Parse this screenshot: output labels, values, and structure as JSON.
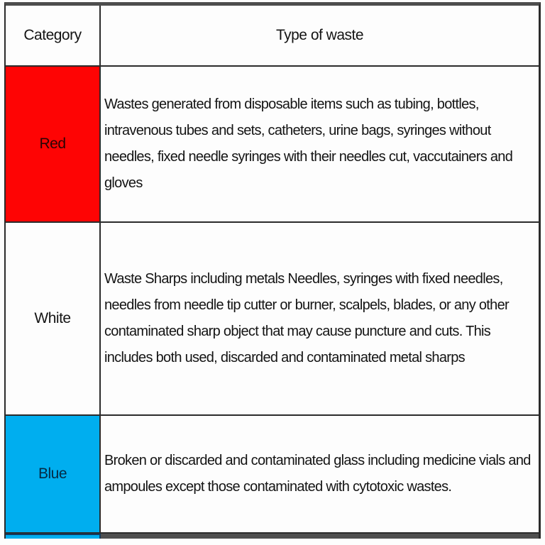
{
  "table": {
    "header": {
      "category": "Category",
      "type": "Type of waste"
    },
    "rows": [
      {
        "category": "Red",
        "bin_color": "#fe0404",
        "label_color": "#2a0404",
        "description": "Wastes generated from disposable items such as tubing, bottles, intravenous tubes and sets, catheters, urine bags, syringes without needles, fixed needle syringes with their needles cut, vaccutainers and gloves"
      },
      {
        "category": "White",
        "bin_color": "#fdfdfd",
        "label_color": "#141414",
        "description": "Waste Sharps including metals Needles, syringes with fixed needles, needles from needle tip cutter or burner, scalpels, blades, or any other contaminated sharp object that may cause puncture and cuts. This includes both used, discarded and contaminated metal sharps"
      },
      {
        "category": "Blue",
        "bin_color": "#00aeef",
        "label_color": "#042a44",
        "description": "Broken or discarded and contaminated glass including medicine vials and ampoules except those contaminated with cytotoxic wastes."
      }
    ],
    "colors": {
      "border": "#2b2b2b",
      "top_bar": "#4d4d4d",
      "bottom_bar": "#4f4f4f",
      "text": "#141414"
    }
  }
}
